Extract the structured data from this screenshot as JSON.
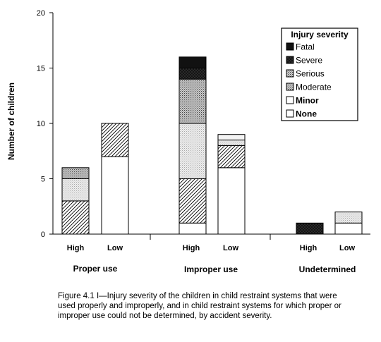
{
  "chart_data": {
    "type": "bar",
    "stacked": true,
    "ylabel": "Number of children",
    "ylim": [
      0,
      20
    ],
    "yticks": [
      0,
      5,
      10,
      15,
      20
    ],
    "groups": [
      {
        "name": "Proper use",
        "categories": [
          "High",
          "Low"
        ]
      },
      {
        "name": "Improper use",
        "categories": [
          "High",
          "Low"
        ]
      },
      {
        "name": "Undetermined",
        "categories": [
          "High",
          "Low"
        ]
      }
    ],
    "categories": [
      "High",
      "Low",
      "High",
      "Low",
      "High",
      "Low"
    ],
    "series": [
      {
        "name": "None",
        "values": [
          0,
          0,
          1,
          0,
          0,
          0
        ]
      },
      {
        "name": "Minor",
        "values": [
          0,
          7,
          0,
          6,
          0,
          1
        ]
      },
      {
        "name": "Moderate",
        "values": [
          3,
          3,
          4,
          2,
          0,
          0
        ]
      },
      {
        "name": "Serious",
        "values": [
          1,
          0,
          4,
          0.5,
          0,
          1
        ]
      },
      {
        "name": "Severe",
        "values": [
          2,
          0,
          1,
          0.5,
          1,
          0
        ]
      },
      {
        "name": "Fatal",
        "values": [
          0,
          0,
          1,
          0,
          1,
          0
        ]
      },
      {
        "name": "",
        "values": [
          0,
          0,
          5,
          0,
          0,
          0
        ]
      }
    ],
    "legend": {
      "title": "Injury severity",
      "placement": "top-right",
      "items": [
        "Fatal",
        "Severe",
        "Serious",
        "Moderate",
        "Minor",
        "None"
      ]
    }
  },
  "caption": "Figure 4.1 I—Injury severity of the children in child restraint systems that were used properly and improperly, and in child restraint systems for which proper or improper use could not be determined, by accident severity."
}
